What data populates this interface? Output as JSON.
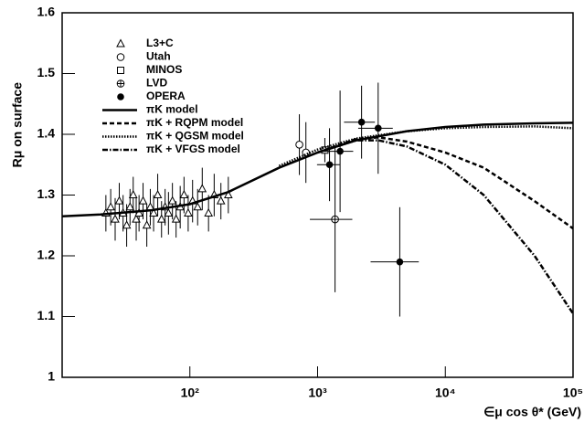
{
  "chart_data": {
    "type": "scatter",
    "xlabel": "∈μ cos θ* (GeV)",
    "ylabel": "Rμ on surface",
    "xscale": "log",
    "xlim": [
      10,
      100000
    ],
    "xticks": [
      {
        "value": 100,
        "label": "10²"
      },
      {
        "value": 1000,
        "label": "10³"
      },
      {
        "value": 10000,
        "label": "10⁴"
      },
      {
        "value": 100000,
        "label": "10⁵"
      }
    ],
    "ylim": [
      1,
      1.6
    ],
    "yticks": [
      1,
      1.1,
      1.2,
      1.3,
      1.4,
      1.5,
      1.6
    ],
    "series": [
      {
        "name": "L3+C",
        "marker": "triangle",
        "color": "#000",
        "x": [
          22,
          24,
          26,
          28,
          30,
          32,
          34,
          36,
          38,
          40,
          43,
          46,
          49,
          52,
          56,
          60,
          64,
          68,
          73,
          78,
          84,
          90,
          97,
          105,
          115,
          125,
          140,
          155,
          175,
          200
        ],
        "values": [
          1.27,
          1.28,
          1.26,
          1.29,
          1.27,
          1.25,
          1.28,
          1.3,
          1.26,
          1.27,
          1.29,
          1.25,
          1.28,
          1.27,
          1.3,
          1.26,
          1.28,
          1.27,
          1.29,
          1.26,
          1.28,
          1.3,
          1.27,
          1.29,
          1.28,
          1.31,
          1.27,
          1.3,
          1.29,
          1.3
        ],
        "errors": [
          0.03,
          0.03,
          0.035,
          0.03,
          0.03,
          0.035,
          0.03,
          0.03,
          0.035,
          0.03,
          0.03,
          0.035,
          0.03,
          0.03,
          0.035,
          0.03,
          0.03,
          0.035,
          0.03,
          0.03,
          0.035,
          0.03,
          0.03,
          0.035,
          0.03,
          0.035,
          0.03,
          0.035,
          0.03,
          0.03
        ]
      },
      {
        "name": "Utah",
        "marker": "circle",
        "color": "#000",
        "x": [
          720,
          810
        ],
        "values": [
          1.383,
          1.37
        ],
        "errors": [
          0.05,
          0.05
        ]
      },
      {
        "name": "MINOS",
        "marker": "square",
        "color": "#000",
        "x": [
          1140
        ],
        "values": [
          1.374
        ],
        "errors": [
          0.02
        ]
      },
      {
        "name": "LVD",
        "marker": "cross",
        "color": "#000",
        "x": [
          1370
        ],
        "values": [
          1.26
        ],
        "errors": [
          0.12
        ],
        "xerrors": [
          500
        ]
      },
      {
        "name": "OPERA",
        "marker": "dot",
        "color": "#000",
        "x": [
          1240,
          1500,
          2210,
          2980,
          4400
        ],
        "values": [
          1.35,
          1.372,
          1.42,
          1.41,
          1.19
        ],
        "errors": [
          0.06,
          0.1,
          0.06,
          0.075,
          0.09
        ],
        "xerrors": [
          250,
          400,
          600,
          900,
          1800
        ]
      },
      {
        "name": "πK model",
        "dash": "none",
        "width": 2.5,
        "color": "#000",
        "x": [
          10,
          20,
          50,
          100,
          200,
          500,
          1000,
          2000,
          5000,
          10000,
          20000,
          50000,
          100000
        ],
        "values": [
          1.265,
          1.268,
          1.275,
          1.285,
          1.305,
          1.345,
          1.37,
          1.39,
          1.405,
          1.412,
          1.416,
          1.418,
          1.419
        ]
      },
      {
        "name": "πK + RQPM model",
        "dash": "5,3",
        "width": 2.5,
        "color": "#000",
        "x": [
          1000,
          2000,
          3000,
          5000,
          10000,
          20000,
          50000,
          100000
        ],
        "values": [
          1.37,
          1.392,
          1.395,
          1.388,
          1.37,
          1.345,
          1.29,
          1.245
        ]
      },
      {
        "name": "πK + QGSM model",
        "dash": "1.5,1.5",
        "width": 2.5,
        "color": "#000",
        "x": [
          500,
          1000,
          2000,
          5000,
          10000,
          20000,
          50000,
          100000
        ],
        "values": [
          1.348,
          1.375,
          1.393,
          1.405,
          1.41,
          1.412,
          1.413,
          1.41
        ]
      },
      {
        "name": "πK + VFGS model",
        "dash": "6,2,1.5,2",
        "width": 2.5,
        "color": "#000",
        "x": [
          1000,
          2000,
          3000,
          5000,
          10000,
          20000,
          50000,
          100000
        ],
        "values": [
          1.37,
          1.39,
          1.39,
          1.38,
          1.35,
          1.3,
          1.2,
          1.105
        ]
      }
    ]
  }
}
